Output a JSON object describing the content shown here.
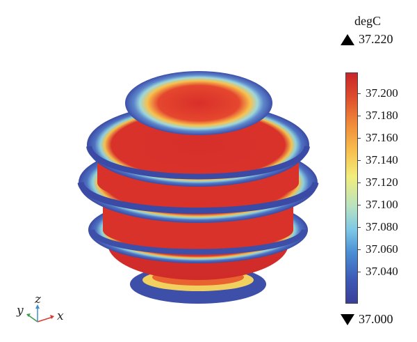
{
  "colorbar": {
    "unit": "degC",
    "max_label": "37.220",
    "min_label": "37.000",
    "ticks": [
      "37.200",
      "37.180",
      "37.160",
      "37.140",
      "37.120",
      "37.100",
      "37.080",
      "37.060",
      "37.040"
    ],
    "colors": [
      "#3a3f98",
      "#3c59b5",
      "#4a8fd4",
      "#7ec9e6",
      "#b8e2c0",
      "#f2ee7c",
      "#f8c04e",
      "#f08a3a",
      "#dd4a2c",
      "#c7262a"
    ]
  },
  "axes": {
    "x": "x",
    "y": "y",
    "z": "z"
  },
  "slice_colors": {
    "rim": "#3d4fa8",
    "hot": "#d7302b",
    "edge_band": "#7ec6e2",
    "yellow_band": "#f0d060"
  }
}
